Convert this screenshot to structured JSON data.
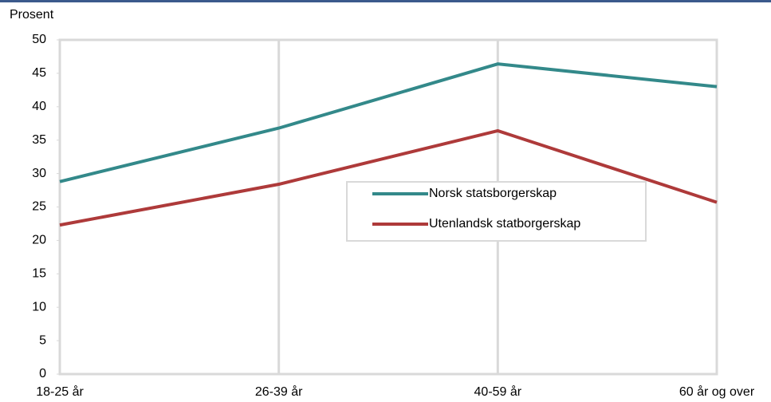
{
  "chart_data": {
    "type": "line",
    "y_label": "Prosent",
    "categories": [
      "18-25 år",
      "26-39 år",
      "40-59 år",
      "60 år og over"
    ],
    "series": [
      {
        "name": "Norsk statsborgerskap",
        "color": "#33898a",
        "values": [
          28.8,
          36.8,
          46.4,
          43.0
        ]
      },
      {
        "name": "Utenlandsk statborgerskap",
        "color": "#ae3a3a",
        "values": [
          22.3,
          28.4,
          36.4,
          25.7
        ]
      }
    ],
    "ylim": [
      0,
      50
    ],
    "yticks": [
      0,
      5,
      10,
      15,
      20,
      25,
      30,
      35,
      40,
      45,
      50
    ],
    "grid": true
  }
}
